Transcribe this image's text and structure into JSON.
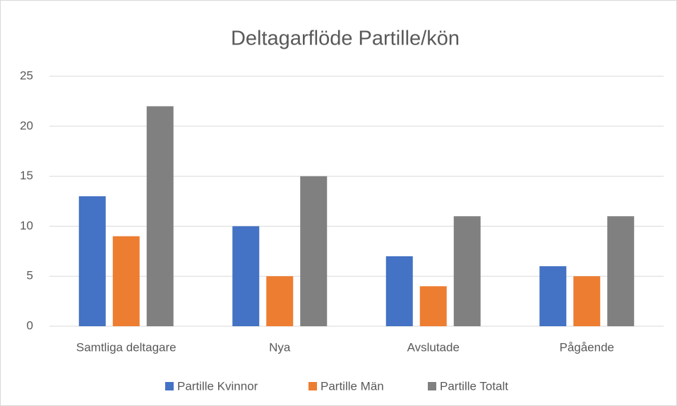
{
  "chart_data": {
    "type": "bar",
    "title": "Deltagarflöde Partille/kön",
    "categories": [
      "Samtliga deltagare",
      "Nya",
      "Avslutade",
      "Pågående"
    ],
    "series": [
      {
        "name": "Partille Kvinnor",
        "color": "#4472c4",
        "values": [
          13,
          10,
          7,
          6
        ]
      },
      {
        "name": "Partille Män",
        "color": "#ed7d31",
        "values": [
          9,
          5,
          4,
          5
        ]
      },
      {
        "name": "Partille Totalt",
        "color": "#808080",
        "values": [
          22,
          15,
          11,
          11
        ]
      }
    ],
    "ylim": [
      0,
      25
    ],
    "yticks": [
      0,
      5,
      10,
      15,
      20,
      25
    ],
    "grid": true,
    "legend": "bottom"
  }
}
